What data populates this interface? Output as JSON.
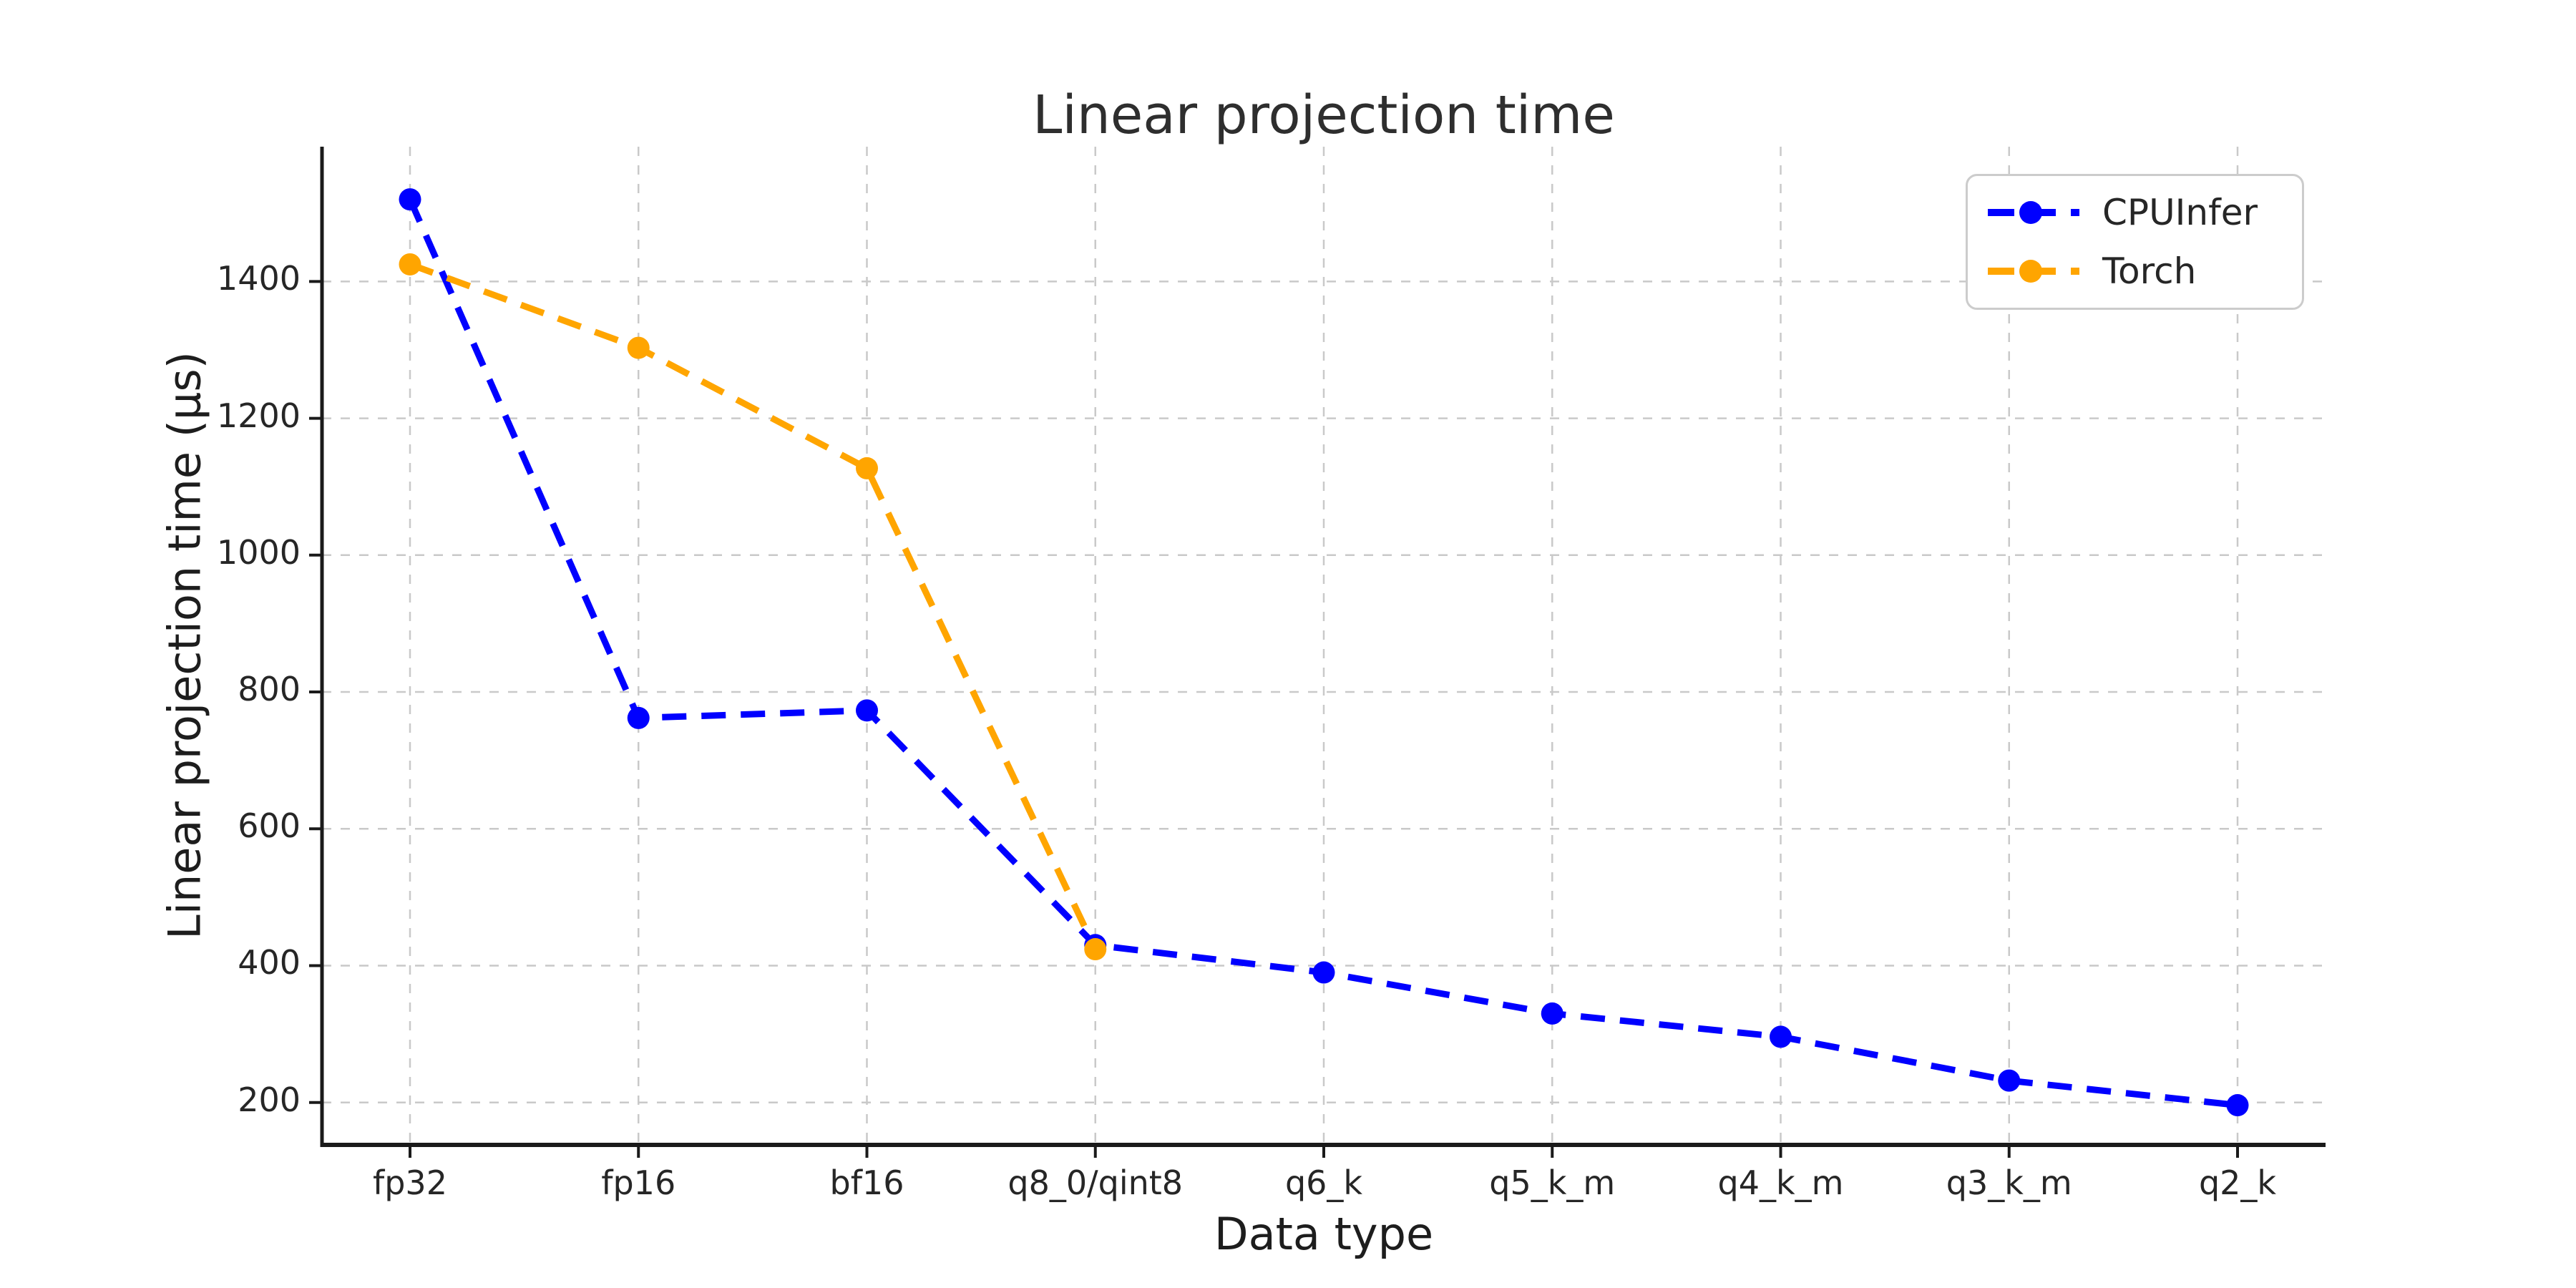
{
  "title": "Linear projection time",
  "chart_data": {
    "type": "line",
    "title": "Linear projection time",
    "xlabel": "Data type",
    "ylabel": "Linear projection time (µs)",
    "categories": [
      "fp32",
      "fp16",
      "bf16",
      "q8_0/qint8",
      "q6_k",
      "q5_k_m",
      "q4_k_m",
      "q3_k_m",
      "q2_k"
    ],
    "series": [
      {
        "name": "CPUInfer",
        "color": "#0000ff",
        "values": [
          1520,
          762,
          773,
          430,
          390,
          330,
          296,
          232,
          196
        ]
      },
      {
        "name": "Torch",
        "color": "#ffa500",
        "values": [
          1425,
          1303,
          1127,
          424,
          null,
          null,
          null,
          null,
          null
        ]
      }
    ],
    "yticks": [
      200,
      400,
      600,
      800,
      1000,
      1200,
      1400
    ],
    "ylim": [
      138,
      1597
    ],
    "grid": true,
    "grid_style": "dashed",
    "line_style": "dashed",
    "marker": "circle",
    "legend_position": "upper right",
    "colors": {
      "grid": "#c9c9c9",
      "spine": "#1a1a1a",
      "text": "#262626",
      "background": "#ffffff"
    }
  }
}
